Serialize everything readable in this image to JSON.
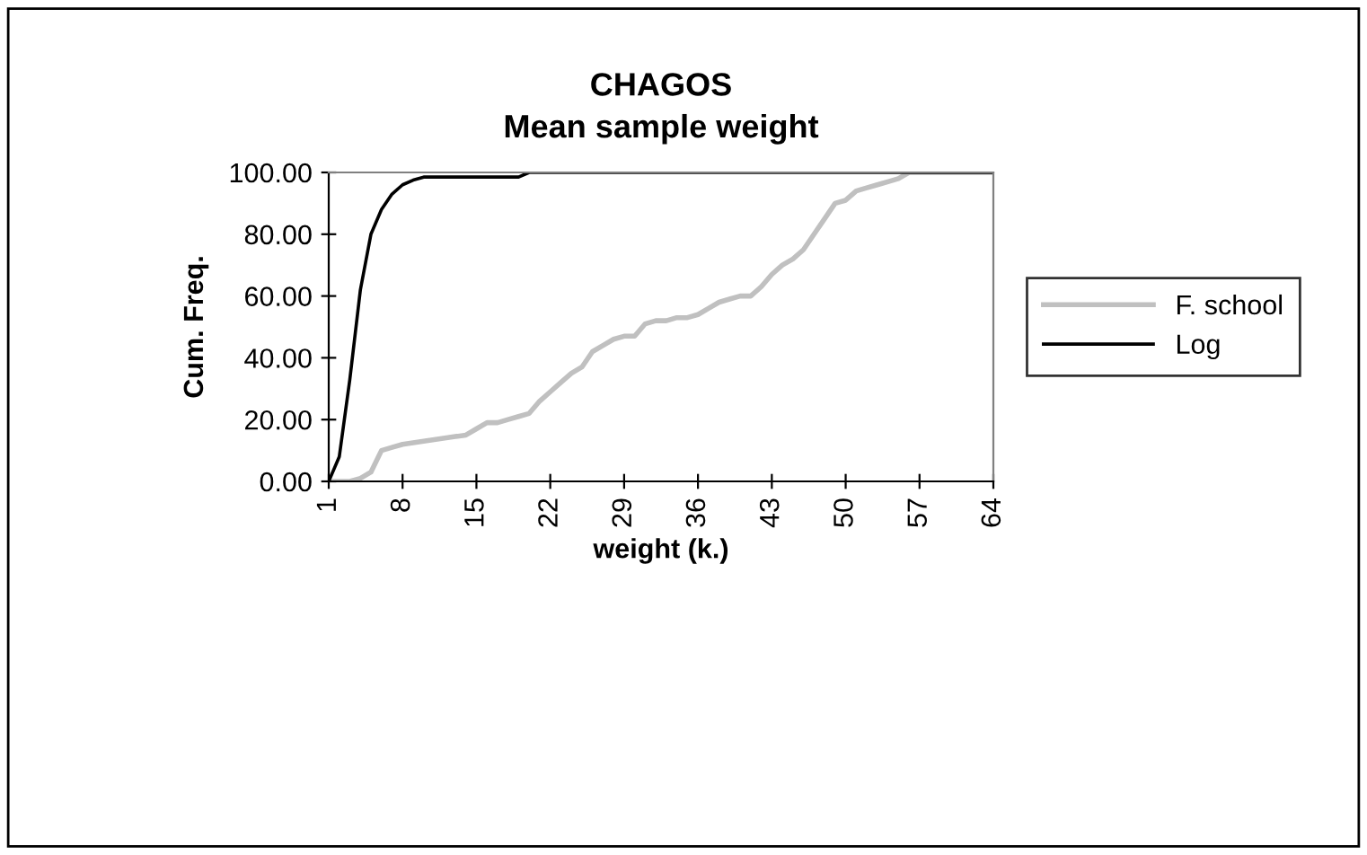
{
  "chart_data": {
    "type": "line",
    "title": "CHAGOS\nMean sample weight",
    "xlabel": "weight (k.)",
    "ylabel": "Cum. Freq.",
    "x": [
      1,
      2,
      3,
      4,
      5,
      6,
      7,
      8,
      9,
      10,
      11,
      12,
      13,
      14,
      15,
      16,
      17,
      18,
      19,
      20,
      21,
      22,
      23,
      24,
      25,
      26,
      27,
      28,
      29,
      30,
      31,
      32,
      33,
      34,
      35,
      36,
      37,
      38,
      39,
      40,
      41,
      42,
      43,
      44,
      45,
      46,
      47,
      48,
      49,
      50,
      51,
      52,
      53,
      54,
      55,
      56,
      57,
      58,
      59,
      60,
      61,
      62,
      63,
      64
    ],
    "series": [
      {
        "name": "F. school",
        "color": "#c0c0c0",
        "values": [
          0,
          0,
          0,
          1,
          3,
          10,
          11,
          12,
          12.5,
          13,
          13.5,
          14,
          14.5,
          15,
          17,
          19,
          19,
          20,
          21,
          22,
          26,
          29,
          32,
          35,
          37,
          42,
          44,
          46,
          47,
          47,
          51,
          52,
          52,
          53,
          53,
          54,
          56,
          58,
          59,
          60,
          60,
          63,
          67,
          70,
          72,
          75,
          80,
          85,
          90,
          91,
          94,
          95,
          96,
          97,
          98,
          100,
          100,
          100,
          100,
          100,
          100,
          100,
          100,
          100
        ]
      },
      {
        "name": "Log",
        "color": "#000000",
        "values": [
          0,
          8,
          33,
          62,
          80,
          88,
          93,
          96,
          97.5,
          98.5,
          98.5,
          98.5,
          98.5,
          98.5,
          98.5,
          98.5,
          98.5,
          98.5,
          98.5,
          100,
          100,
          100,
          100,
          100,
          100,
          100,
          100,
          100,
          100,
          100,
          100,
          100,
          100,
          100,
          100,
          100,
          100,
          100,
          100,
          100,
          100,
          100,
          100,
          100,
          100,
          100,
          100,
          100,
          100,
          100,
          100,
          100,
          100,
          100,
          100,
          100,
          100,
          100,
          100,
          100,
          100,
          100,
          100,
          100
        ]
      }
    ],
    "xlim": [
      1,
      64
    ],
    "xticks": [
      1,
      8,
      15,
      22,
      29,
      36,
      43,
      50,
      57,
      64
    ],
    "ylim": [
      0,
      100
    ],
    "yticks": [
      {
        "value": 0,
        "label": "0.00"
      },
      {
        "value": 20,
        "label": "20.00"
      },
      {
        "value": 40,
        "label": "40.00"
      },
      {
        "value": 60,
        "label": "60.00"
      },
      {
        "value": 80,
        "label": "80.00"
      },
      {
        "value": 100,
        "label": "100.00"
      }
    ],
    "grid": false,
    "legend": "right"
  }
}
